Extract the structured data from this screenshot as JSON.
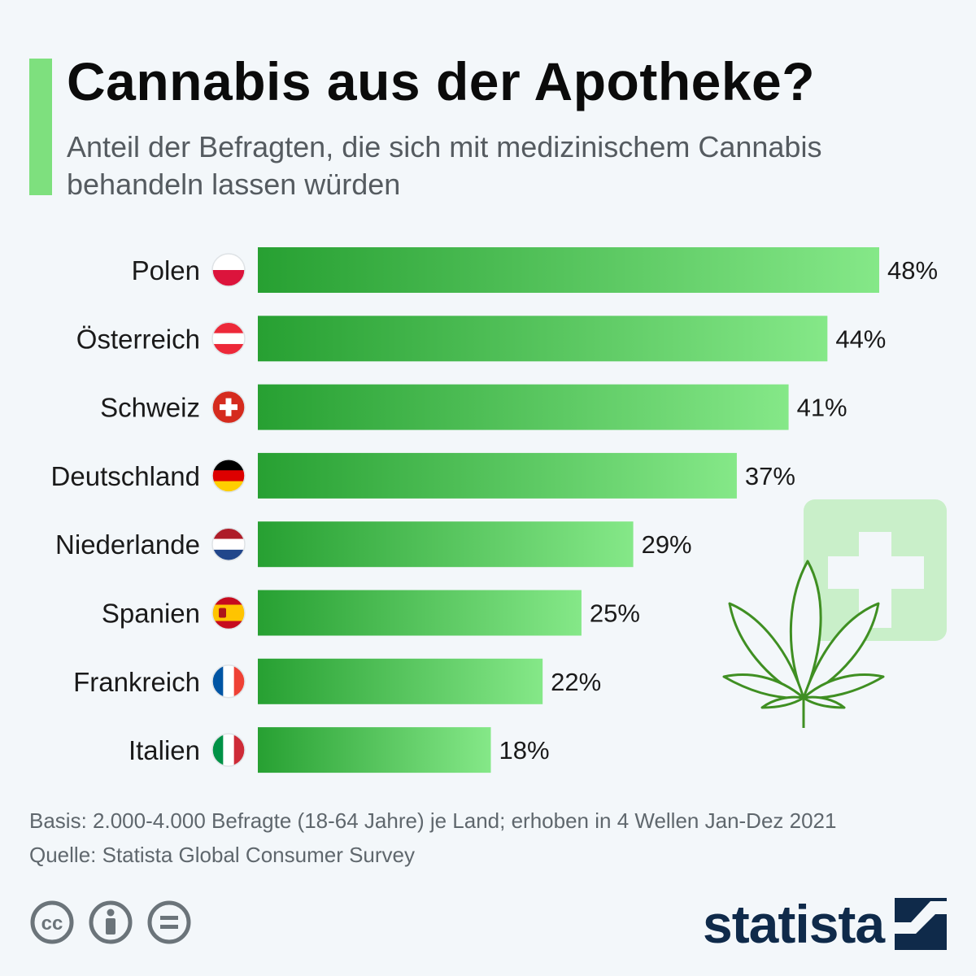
{
  "header": {
    "title": "Cannabis aus der Apotheke?",
    "subtitle": "Anteil der Befragten, die sich mit medizinischem Cannabis behandeln lassen würden"
  },
  "chart_data": {
    "type": "bar",
    "orientation": "horizontal",
    "categories": [
      "Polen",
      "Österreich",
      "Schweiz",
      "Deutschland",
      "Niederlande",
      "Spanien",
      "Frankreich",
      "Italien"
    ],
    "values": [
      48,
      44,
      41,
      37,
      29,
      25,
      22,
      18
    ],
    "value_labels": [
      "48%",
      "44%",
      "41%",
      "37%",
      "29%",
      "25%",
      "22%",
      "18%"
    ],
    "flag_icons": [
      "flag-poland-icon",
      "flag-austria-icon",
      "flag-switzerland-icon",
      "flag-germany-icon",
      "flag-netherlands-icon",
      "flag-spain-icon",
      "flag-france-icon",
      "flag-italy-icon"
    ],
    "xlim": [
      0,
      48
    ],
    "grid": false,
    "colors": {
      "bar_start": "#27a032",
      "bar_end": "#85e888"
    }
  },
  "decoration": {
    "icons": [
      "pharmacy-cross-icon",
      "cannabis-leaf-icon"
    ],
    "colors": {
      "cross_box": "#c9efc9",
      "leaf_stroke": "#3f8f22"
    }
  },
  "footer": {
    "basis": "Basis: 2.000-4.000 Befragte (18-64 Jahre) je Land; erhoben in 4 Wellen Jan-Dez 2021",
    "source": "Quelle: Statista Global Consumer Survey",
    "license_icons": [
      "cc-icon",
      "attribution-icon",
      "no-derivatives-icon"
    ],
    "brand": "statista"
  }
}
